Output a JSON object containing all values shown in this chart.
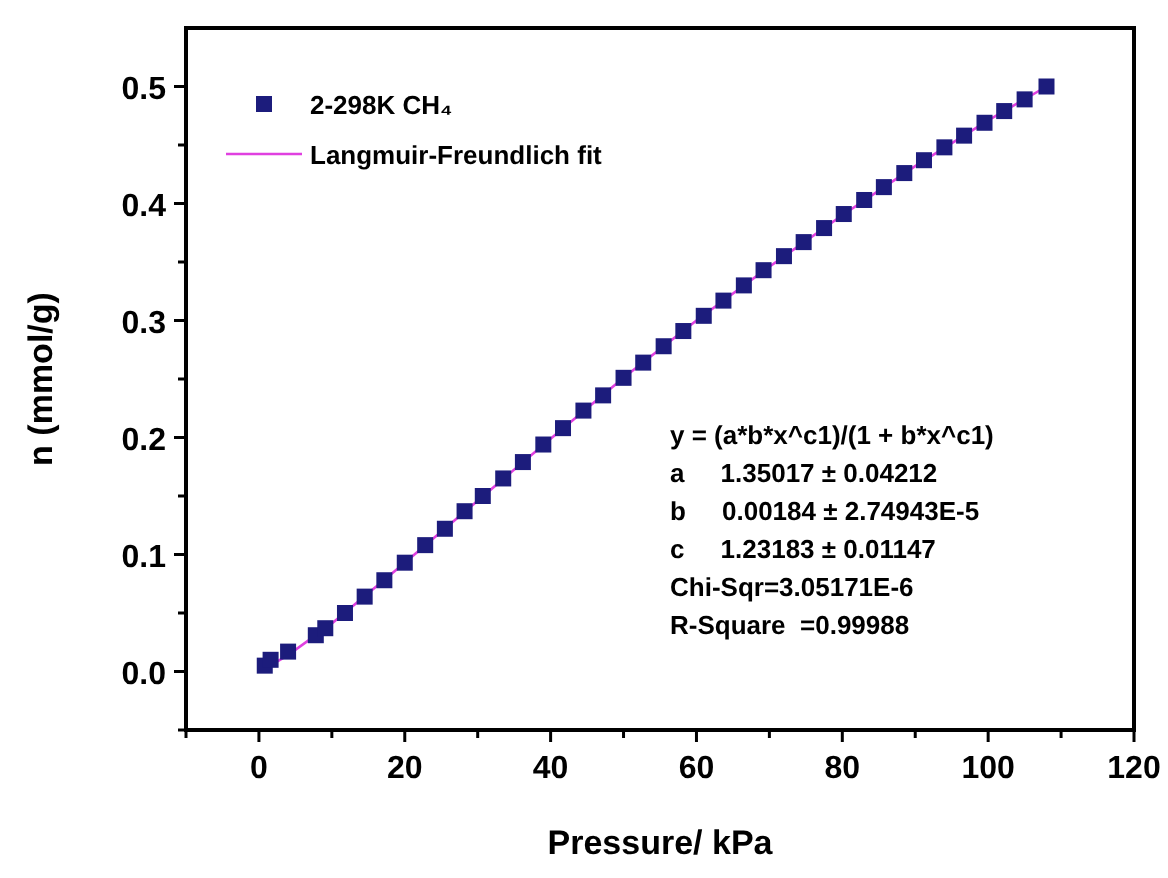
{
  "chart_data": {
    "type": "scatter",
    "xlabel": "Pressure/ kPa",
    "ylabel": "n (mmol/g)",
    "xlim": [
      -10,
      120
    ],
    "ylim": [
      -0.05,
      0.55
    ],
    "xticks": [
      {
        "value": -10,
        "label": null
      },
      0,
      {
        "value": 10,
        "label": null
      },
      20,
      {
        "value": 30,
        "label": null
      },
      40,
      {
        "value": 50,
        "label": null
      },
      60,
      {
        "value": 70,
        "label": null
      },
      80,
      {
        "value": 90,
        "label": null
      },
      100,
      {
        "value": 110,
        "label": null
      },
      120
    ],
    "yticks": [
      {
        "value": -0.05,
        "label": null
      },
      {
        "value": 0,
        "label": "0.0"
      },
      {
        "value": 0.05,
        "label": null
      },
      0.1,
      {
        "value": 0.15,
        "label": null
      },
      0.2,
      {
        "value": 0.25,
        "label": null
      },
      0.3,
      {
        "value": 0.35,
        "label": null
      },
      0.4,
      {
        "value": 0.45,
        "label": null
      },
      0.5
    ],
    "legend": "top left",
    "marker": "square",
    "series": [
      {
        "name": "2-298K CH₄",
        "color": "#1c1c7c",
        "x": [
          0.8,
          1.6,
          4,
          7.8,
          9.1,
          11.8,
          14.5,
          17.2,
          20,
          22.8,
          25.5,
          28.2,
          30.7,
          33.5,
          36.2,
          39,
          41.7,
          44.5,
          47.2,
          50,
          52.7,
          55.5,
          58.2,
          61,
          63.7,
          66.5,
          69.2,
          72,
          74.7,
          77.5,
          80.2,
          83,
          85.7,
          88.5,
          91.2,
          94,
          96.7,
          99.5,
          102.2,
          105,
          108
        ],
        "values": [
          0.005,
          0.01,
          0.017,
          0.031,
          0.037,
          0.05,
          0.064,
          0.078,
          0.093,
          0.108,
          0.122,
          0.137,
          0.15,
          0.165,
          0.179,
          0.194,
          0.208,
          0.223,
          0.236,
          0.251,
          0.264,
          0.278,
          0.291,
          0.304,
          0.317,
          0.33,
          0.343,
          0.355,
          0.367,
          0.379,
          0.391,
          0.403,
          0.414,
          0.426,
          0.437,
          0.448,
          0.458,
          0.469,
          0.479,
          0.489,
          0.5
        ]
      },
      {
        "name": "Langmuir-Freundlich fit",
        "type": "line",
        "color": "#e040e0",
        "line_style": "solid",
        "marker": "none",
        "x": [
          0,
          1,
          4,
          10,
          20,
          30,
          40,
          50,
          60,
          70,
          80,
          90,
          100,
          108
        ],
        "values": [
          0,
          0.003,
          0.014,
          0.041,
          0.093,
          0.146,
          0.199,
          0.251,
          0.3,
          0.346,
          0.39,
          0.432,
          0.471,
          0.5
        ]
      }
    ],
    "annotations": [
      "y = (a*b*x^c1)/(1 + b*x^c1)",
      "a     1.35017 ± 0.04212",
      "b     0.00184 ± 2.74943E-5",
      "c     1.23183 ± 0.01147",
      "Chi-Sqr=3.05171E-6",
      "R-Square  =0.99988"
    ]
  }
}
